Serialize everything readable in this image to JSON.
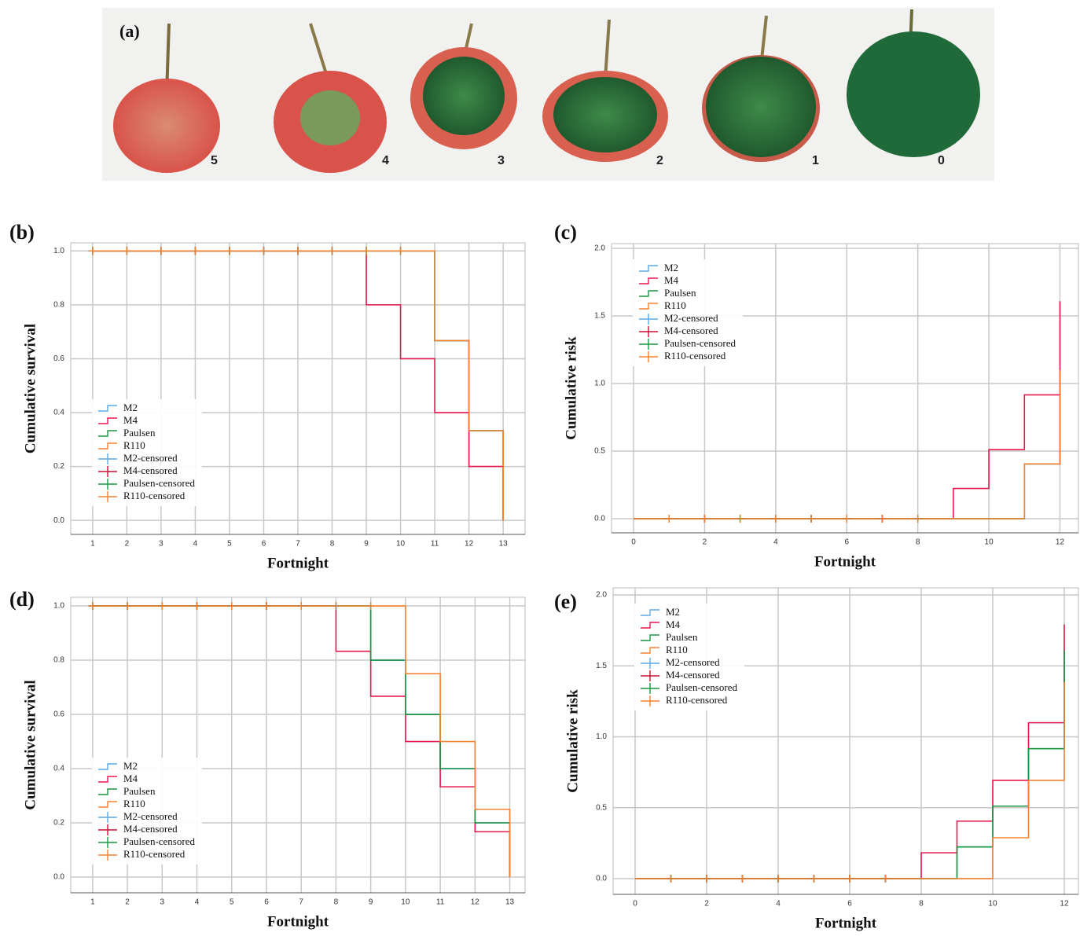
{
  "panel_a": {
    "label": "(a)",
    "scores": [
      "5",
      "4",
      "3",
      "2",
      "1",
      "0"
    ]
  },
  "chart_data": [
    {
      "type": "line",
      "panel": "(b)",
      "xlabel": "Fortnight",
      "ylabel": "Cumulative survival",
      "grid": true,
      "legend": "lower left",
      "x": [
        1,
        2,
        3,
        4,
        5,
        6,
        7,
        8,
        9,
        10,
        11,
        12,
        13
      ],
      "xlim": [
        0.36,
        13.64
      ],
      "xticks": [
        1,
        2,
        3,
        4,
        5,
        6,
        7,
        8,
        9,
        10,
        11,
        12,
        13
      ],
      "ylim": [
        -0.052,
        1.03
      ],
      "yticks": [
        {
          "value": 0,
          "label": "0.0"
        },
        0.2,
        0.4,
        0.6,
        0.8,
        {
          "value": 1,
          "label": "1.0"
        }
      ],
      "series": [
        {
          "name": "M2",
          "style": "step",
          "color": "#5aa9e6",
          "values": [
            1,
            1,
            1,
            1,
            1,
            1,
            1,
            1,
            1,
            1,
            0.667,
            0.333,
            0
          ]
        },
        {
          "name": "M4",
          "style": "step",
          "color": "#e8174f",
          "values": [
            1,
            1,
            1,
            1,
            1,
            1,
            1,
            1,
            0.8,
            0.6,
            0.4,
            0.2,
            0
          ]
        },
        {
          "name": "Paulsen",
          "style": "step",
          "color": "#1a9641",
          "values": [
            1,
            1,
            1,
            1,
            1,
            1,
            1,
            1,
            1,
            1,
            0.667,
            0.333,
            0
          ]
        },
        {
          "name": "R110",
          "style": "step",
          "color": "#f58231",
          "values": [
            1,
            1,
            1,
            1,
            1,
            1,
            1,
            1,
            1,
            1,
            0.667,
            0.333,
            0
          ]
        },
        {
          "name": "M2-censored",
          "style": "cross",
          "color": "#5aa9e6",
          "x": [
            1,
            2,
            3,
            4,
            5,
            6,
            7,
            8,
            9,
            10
          ],
          "values": [
            1,
            1,
            1,
            1,
            1,
            1,
            1,
            1,
            1,
            1
          ]
        },
        {
          "name": "M4-censored",
          "style": "cross",
          "color": "#c8102e",
          "x": [
            1,
            2,
            3,
            4,
            5,
            6,
            7,
            8
          ],
          "values": [
            1,
            1,
            1,
            1,
            1,
            1,
            1,
            1
          ]
        },
        {
          "name": "Paulsen-censored",
          "style": "cross",
          "color": "#1a9641",
          "x": [
            1,
            2,
            3,
            4,
            5,
            6,
            7,
            8,
            9,
            10
          ],
          "values": [
            1,
            1,
            1,
            1,
            1,
            1,
            1,
            1,
            1,
            1
          ]
        },
        {
          "name": "R110-censored",
          "style": "cross",
          "color": "#f58231",
          "x": [
            1,
            2,
            3,
            4,
            5,
            6,
            7,
            8,
            9,
            10
          ],
          "values": [
            1,
            1,
            1,
            1,
            1,
            1,
            1,
            1,
            1,
            1
          ]
        }
      ]
    },
    {
      "type": "line",
      "panel": "(c)",
      "xlabel": "Fortnight",
      "ylabel": "Cumulative risk",
      "grid": true,
      "legend": "upper left",
      "x": [
        0,
        1,
        2,
        3,
        4,
        5,
        6,
        7,
        8,
        9,
        10,
        11,
        12
      ],
      "xlim": [
        -0.62,
        12.52
      ],
      "xticks": [
        0,
        2,
        4,
        6,
        8,
        10,
        12
      ],
      "ylim": [
        -0.105,
        2.035
      ],
      "yticks": [
        {
          "value": 0,
          "label": "0.0"
        },
        0.5,
        {
          "value": 1,
          "label": "1.0"
        },
        1.5,
        {
          "value": 2,
          "label": "2.0"
        }
      ],
      "series": [
        {
          "name": "M2",
          "style": "step",
          "color": "#5aa9e6",
          "values": [
            0,
            0,
            0,
            0,
            0,
            0,
            0,
            0,
            0,
            0,
            0,
            0.405,
            1.099
          ]
        },
        {
          "name": "M4",
          "style": "step",
          "color": "#e8174f",
          "values": [
            0,
            0,
            0,
            0,
            0,
            0,
            0,
            0,
            0,
            0.223,
            0.511,
            0.916,
            1.609
          ]
        },
        {
          "name": "Paulsen",
          "style": "step",
          "color": "#1a9641",
          "values": [
            0,
            0,
            0,
            0,
            0,
            0,
            0,
            0,
            0,
            0,
            0,
            0.405,
            1.099
          ]
        },
        {
          "name": "R110",
          "style": "step",
          "color": "#f58231",
          "values": [
            0,
            0,
            0,
            0,
            0,
            0,
            0,
            0,
            0,
            0,
            0,
            0.405,
            1.099
          ]
        },
        {
          "name": "M2-censored",
          "style": "cross",
          "color": "#5aa9e6",
          "x": [
            1,
            2,
            3,
            4,
            5,
            6,
            7,
            8
          ],
          "values": [
            0,
            0,
            0,
            0,
            0,
            0,
            0,
            0
          ]
        },
        {
          "name": "M4-censored",
          "style": "cross",
          "color": "#c8102e",
          "x": [
            1,
            2,
            3,
            4,
            5,
            6,
            7,
            8
          ],
          "values": [
            0,
            0,
            0,
            0,
            0,
            0,
            0,
            0
          ]
        },
        {
          "name": "Paulsen-censored",
          "style": "cross",
          "color": "#1a9641",
          "x": [
            1,
            2,
            3,
            4,
            5,
            6,
            7,
            8
          ],
          "values": [
            0,
            0,
            0,
            0,
            0,
            0,
            0,
            0
          ]
        },
        {
          "name": "R110-censored",
          "style": "cross",
          "color": "#f58231",
          "x": [
            1,
            2,
            3,
            4,
            5,
            6,
            7,
            8
          ],
          "values": [
            0,
            0,
            0,
            0,
            0,
            0,
            0,
            0
          ]
        }
      ]
    },
    {
      "type": "line",
      "panel": "(d)",
      "xlabel": "Fortnight",
      "ylabel": "Cumulative survival",
      "grid": true,
      "legend": "lower left",
      "x": [
        1,
        2,
        3,
        4,
        5,
        6,
        7,
        8,
        9,
        10,
        11,
        12,
        13
      ],
      "xlim": [
        0.37,
        13.44
      ],
      "xticks": [
        1,
        2,
        3,
        4,
        5,
        6,
        7,
        8,
        9,
        10,
        11,
        12,
        13
      ],
      "ylim": [
        -0.058,
        1.032
      ],
      "yticks": [
        {
          "value": 0,
          "label": "0.0"
        },
        0.2,
        0.4,
        0.6,
        0.8,
        {
          "value": 1,
          "label": "1.0"
        }
      ],
      "series": [
        {
          "name": "M2",
          "style": "step",
          "color": "#5aa9e6",
          "values": [
            1,
            1,
            1,
            1,
            1,
            1,
            1,
            1,
            0.8,
            0.6,
            0.4,
            0.2,
            0
          ]
        },
        {
          "name": "M4",
          "style": "step",
          "color": "#e8174f",
          "values": [
            1,
            1,
            1,
            1,
            1,
            1,
            1,
            0.833,
            0.667,
            0.5,
            0.333,
            0.167,
            0
          ]
        },
        {
          "name": "Paulsen",
          "style": "step",
          "color": "#1a9641",
          "values": [
            1,
            1,
            1,
            1,
            1,
            1,
            1,
            1,
            0.8,
            0.6,
            0.4,
            0.2,
            0
          ]
        },
        {
          "name": "R110",
          "style": "step",
          "color": "#f58231",
          "values": [
            1,
            1,
            1,
            1,
            1,
            1,
            1,
            1,
            1,
            0.75,
            0.5,
            0.25,
            0
          ]
        },
        {
          "name": "M2-censored",
          "style": "cross",
          "color": "#5aa9e6",
          "x": [
            1,
            2,
            3,
            4,
            5,
            6,
            7,
            8
          ],
          "values": [
            1,
            1,
            1,
            1,
            1,
            1,
            1,
            1
          ]
        },
        {
          "name": "M4-censored",
          "style": "cross",
          "color": "#c8102e",
          "x": [
            1,
            2,
            3,
            4,
            5,
            6,
            7
          ],
          "values": [
            1,
            1,
            1,
            1,
            1,
            1,
            1
          ]
        },
        {
          "name": "Paulsen-censored",
          "style": "cross",
          "color": "#1a9641",
          "x": [
            1,
            2,
            3,
            4,
            5,
            6,
            7,
            8
          ],
          "values": [
            1,
            1,
            1,
            1,
            1,
            1,
            1,
            1
          ]
        },
        {
          "name": "R110-censored",
          "style": "cross",
          "color": "#f58231",
          "x": [
            1,
            2,
            3,
            4,
            5,
            6,
            7,
            8,
            9
          ],
          "values": [
            1,
            1,
            1,
            1,
            1,
            1,
            1,
            1,
            1
          ]
        }
      ]
    },
    {
      "type": "line",
      "panel": "(e)",
      "xlabel": "Fortnight",
      "ylabel": "Cumulative risk",
      "grid": true,
      "legend": "upper left",
      "x": [
        0,
        1,
        2,
        3,
        4,
        5,
        6,
        7,
        8,
        9,
        10,
        11,
        12
      ],
      "xlim": [
        -0.615,
        12.396
      ],
      "xticks": [
        0,
        2,
        4,
        6,
        8,
        10,
        12
      ],
      "ylim": [
        -0.111,
        2.05
      ],
      "yticks": [
        {
          "value": 0,
          "label": "0.0"
        },
        0.5,
        {
          "value": 1,
          "label": "1.0"
        },
        1.5,
        {
          "value": 2,
          "label": "2.0"
        }
      ],
      "series": [
        {
          "name": "M2",
          "style": "step",
          "color": "#5aa9e6",
          "values": [
            0,
            0,
            0,
            0,
            0,
            0,
            0,
            0,
            0,
            0.223,
            0.511,
            0.916,
            1.609
          ]
        },
        {
          "name": "M4",
          "style": "step",
          "color": "#e8174f",
          "values": [
            0,
            0,
            0,
            0,
            0,
            0,
            0,
            0,
            0.182,
            0.405,
            0.693,
            1.099,
            1.792
          ]
        },
        {
          "name": "Paulsen",
          "style": "step",
          "color": "#1a9641",
          "values": [
            0,
            0,
            0,
            0,
            0,
            0,
            0,
            0,
            0,
            0.223,
            0.511,
            0.916,
            1.609
          ]
        },
        {
          "name": "R110",
          "style": "step",
          "color": "#f58231",
          "values": [
            0,
            0,
            0,
            0,
            0,
            0,
            0,
            0,
            0,
            0,
            0.288,
            0.693,
            1.386
          ]
        },
        {
          "name": "M2-censored",
          "style": "cross",
          "color": "#5aa9e6",
          "x": [
            1,
            2,
            3,
            4,
            5,
            6,
            7
          ],
          "values": [
            0,
            0,
            0,
            0,
            0,
            0,
            0
          ]
        },
        {
          "name": "M4-censored",
          "style": "cross",
          "color": "#c8102e",
          "x": [
            1,
            2,
            3,
            4,
            5,
            6,
            7
          ],
          "values": [
            0,
            0,
            0,
            0,
            0,
            0,
            0
          ]
        },
        {
          "name": "Paulsen-censored",
          "style": "cross",
          "color": "#1a9641",
          "x": [
            1,
            2,
            3,
            4,
            5,
            6,
            7
          ],
          "values": [
            0,
            0,
            0,
            0,
            0,
            0,
            0
          ]
        },
        {
          "name": "R110-censored",
          "style": "cross",
          "color": "#f58231",
          "x": [
            1,
            2,
            3,
            4,
            5,
            6,
            7
          ],
          "values": [
            0,
            0,
            0,
            0,
            0,
            0,
            0
          ]
        }
      ]
    }
  ]
}
